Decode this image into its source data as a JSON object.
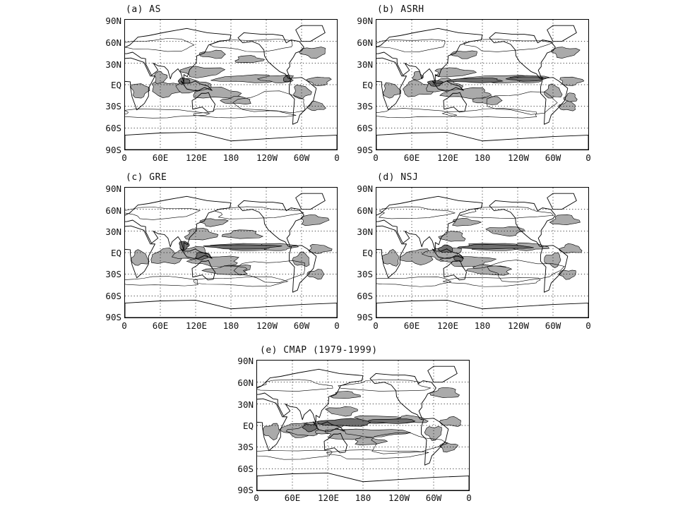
{
  "figure": {
    "lat_ticks": [
      "90N",
      "60N",
      "30N",
      "EQ",
      "30S",
      "60S",
      "90S"
    ],
    "lon_ticks": [
      "0",
      "60E",
      "120E",
      "180",
      "120W",
      "60W",
      "0"
    ],
    "panels": [
      {
        "id": "a",
        "title": "(a) AS"
      },
      {
        "id": "b",
        "title": "(b) ASRH"
      },
      {
        "id": "c",
        "title": "(c) GRE"
      },
      {
        "id": "d",
        "title": "(d) NSJ"
      },
      {
        "id": "e",
        "title": "(e) CMAP (1979-1999)"
      }
    ]
  },
  "colors": {
    "shade": "#aaaaaa",
    "shade_dark": "#6e6e6e",
    "line": "#000000",
    "background": "#ffffff"
  }
}
